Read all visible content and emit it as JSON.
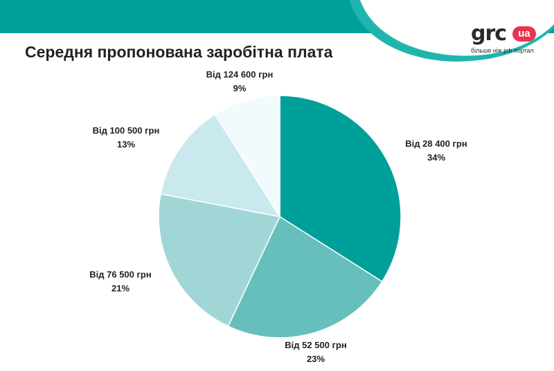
{
  "header": {
    "logo_text": "grc",
    "logo_badge": "ua",
    "logo_tagline": "більше ніж job портал",
    "band_color": "#00a09a",
    "wave_color": "#1fb5ae"
  },
  "chart_data": {
    "type": "pie",
    "title": "Середня пропонована заробітна плата",
    "start_angle_deg": 0,
    "direction": "clockwise",
    "slices": [
      {
        "label": "Від 28 400 грн",
        "value": 34,
        "pct_label": "34%",
        "color": "#00a09a"
      },
      {
        "label": "Від 52 500 грн",
        "value": 23,
        "pct_label": "23%",
        "color": "#66bfbc"
      },
      {
        "label": "Від 76 500 грн",
        "value": 21,
        "pct_label": "21%",
        "color": "#a0d7d6"
      },
      {
        "label": "Від 100 500 грн",
        "value": 13,
        "pct_label": "13%",
        "color": "#c9e9ef"
      },
      {
        "label": "Від 124 600 грн",
        "value": 9,
        "pct_label": "9%",
        "color": "#f1fafd"
      }
    ]
  }
}
